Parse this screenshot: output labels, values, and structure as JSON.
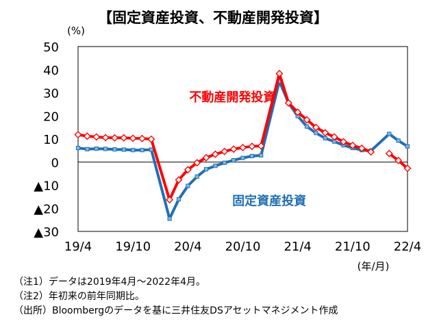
{
  "title": "【固定資産投資、不動産開発投資】",
  "chart_data": {
    "type": "line",
    "ylabel": "(%)",
    "xlabel": "(年/月)",
    "ylim": [
      -30,
      50
    ],
    "yticks": [
      50,
      40,
      30,
      20,
      10,
      0,
      -10,
      -20,
      -30
    ],
    "ytick_labels": [
      "50",
      "40",
      "30",
      "20",
      "10",
      "0",
      "▲10",
      "▲20",
      "▲30"
    ],
    "x_start": "2019-04",
    "x_count": 37,
    "xtick_index": [
      0,
      6,
      12,
      18,
      24,
      30,
      36
    ],
    "xtick_labels": [
      "19/4",
      "19/10",
      "20/4",
      "20/10",
      "21/4",
      "21/10",
      "22/4"
    ],
    "series": [
      {
        "name": "不動産開発投資",
        "color": "#ff0000",
        "label_pos_index": 21,
        "values": [
          11.9,
          11.2,
          10.9,
          10.6,
          10.5,
          10.5,
          10.3,
          10.2,
          9.9,
          -16.3,
          -7.7,
          -3.3,
          -0.3,
          1.9,
          3.4,
          4.6,
          5.6,
          6.3,
          6.8,
          7.0,
          38.3,
          25.6,
          21.6,
          18.3,
          15.0,
          12.7,
          10.9,
          8.8,
          7.2,
          6.0,
          4.4,
          null,
          null,
          3.7,
          0.7,
          -2.7
        ],
        "x_index": [
          0,
          1,
          2,
          3,
          4,
          5,
          6,
          7,
          8,
          10,
          11,
          12,
          13,
          14,
          15,
          16,
          17,
          18,
          19,
          20,
          22,
          23,
          24,
          25,
          26,
          27,
          28,
          29,
          30,
          31,
          32,
          33,
          34,
          34,
          35,
          36
        ]
      },
      {
        "name": "固定資産投資",
        "color": "#1f6fb5",
        "label_pos_index": 27,
        "values": [
          6.1,
          5.6,
          5.8,
          5.7,
          5.5,
          5.4,
          5.2,
          5.2,
          5.4,
          -24.5,
          -16.1,
          -10.3,
          -6.3,
          -3.1,
          -1.6,
          -0.3,
          0.8,
          1.8,
          2.6,
          2.9,
          35.0,
          25.6,
          19.9,
          15.4,
          12.6,
          10.3,
          8.9,
          7.3,
          6.1,
          5.2,
          4.9,
          12.2,
          9.3,
          6.8
        ],
        "x_index": [
          0,
          1,
          2,
          3,
          4,
          5,
          6,
          7,
          8,
          10,
          11,
          12,
          13,
          14,
          15,
          16,
          17,
          18,
          19,
          20,
          22,
          23,
          24,
          25,
          26,
          27,
          28,
          29,
          30,
          31,
          32,
          34,
          35,
          36
        ]
      }
    ]
  },
  "notes": [
    "（注1）データは2019年4月～2022年4月。",
    "（注2）年初来の前年同期比。",
    "（出所）Bloombergのデータを基に三井住友DSアセットマネジメント作成"
  ]
}
